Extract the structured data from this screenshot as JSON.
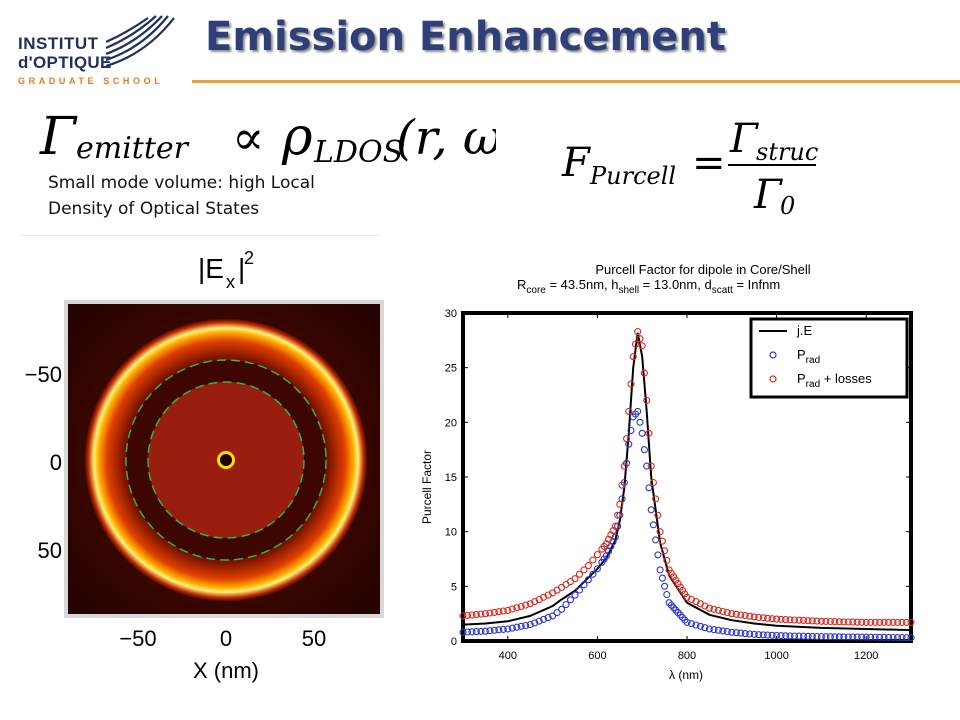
{
  "logo": {
    "line1": "INSTITUT",
    "line2": "d'OPTIQUE",
    "line3": "GRADUATE SCHOOL"
  },
  "slide": {
    "title": "Emission Enhancement",
    "caption_line1": "Small mode volume: high Local",
    "caption_line2": "Density of Optical States"
  },
  "formulas": {
    "gamma_emitter": "Γ",
    "gamma_emitter_sub": "emitter",
    "proportional": "∝",
    "rho": "ρ",
    "rho_sub": "LDOS",
    "rho_args": "(r, ω)",
    "purcell_lhs": "F",
    "purcell_lhs_sub": "Purcell",
    "equals": "=",
    "numerator": "Γ",
    "numerator_sub": "struc",
    "denominator": "Γ",
    "denominator_sub": "0"
  },
  "field_map": {
    "title_main": "|E",
    "title_sub": "x",
    "title_end": "|",
    "title_sup": "2",
    "y_ticks": [
      "−50",
      "0",
      "50"
    ],
    "x_ticks": [
      "−50",
      "0",
      "50"
    ],
    "xlabel": "X (nm)",
    "colors": {
      "background": "#2a0400",
      "core": "#9a1e10",
      "shell": "#3d0600",
      "glow": "#ffd900",
      "dash": "#2fbf3f"
    }
  },
  "chart_data": {
    "type": "scatter",
    "title_line1": "Purcell Factor for dipole in Core/Shell",
    "title_line2_parts": [
      "R",
      "core",
      " = 43.5nm,  h",
      "shell",
      " = 13.0nm,  d",
      "scatt",
      " = Infnm"
    ],
    "xlabel": "λ (nm)",
    "ylabel": "Purcell Factor",
    "xlim": [
      300,
      1300
    ],
    "ylim": [
      0,
      30
    ],
    "xticks": [
      400,
      600,
      800,
      1000,
      1200
    ],
    "yticks": [
      0,
      5,
      10,
      15,
      20,
      25,
      30
    ],
    "legend_position": "top-right",
    "series": [
      {
        "name": "j.E",
        "style": "line",
        "color": "#000000",
        "x": [
          300,
          350,
          400,
          450,
          500,
          520,
          550,
          580,
          600,
          620,
          640,
          650,
          660,
          670,
          680,
          690,
          700,
          710,
          720,
          740,
          760,
          800,
          850,
          900,
          950,
          1000,
          1100,
          1200,
          1300
        ],
        "y": [
          1.5,
          1.6,
          1.8,
          2.3,
          3.2,
          3.8,
          4.6,
          5.8,
          6.6,
          7.6,
          9.2,
          11,
          14,
          19,
          25,
          28.2,
          26,
          21,
          15,
          9,
          6,
          3.5,
          2.4,
          1.9,
          1.6,
          1.4,
          1.2,
          1.1,
          1.0
        ]
      },
      {
        "name": "P_rad",
        "style": "markers",
        "color": "#2d36c8",
        "x": [
          300,
          350,
          400,
          450,
          500,
          520,
          550,
          580,
          600,
          620,
          640,
          650,
          660,
          670,
          680,
          690,
          700,
          710,
          720,
          740,
          760,
          800,
          850,
          900,
          950,
          1000,
          1100,
          1200,
          1300
        ],
        "y": [
          0.8,
          0.9,
          1.1,
          1.5,
          2.3,
          2.9,
          4.2,
          5.6,
          6.6,
          7.8,
          9.5,
          11.5,
          14.5,
          18,
          20.5,
          21,
          19,
          16,
          12,
          6.5,
          3.5,
          1.7,
          1.1,
          0.8,
          0.6,
          0.5,
          0.4,
          0.35,
          0.3
        ]
      },
      {
        "name": "P_rad + losses",
        "style": "markers",
        "color": "#d42a20",
        "x": [
          300,
          350,
          400,
          450,
          500,
          520,
          550,
          580,
          600,
          620,
          640,
          650,
          660,
          670,
          680,
          690,
          700,
          710,
          720,
          740,
          760,
          800,
          850,
          900,
          950,
          1000,
          1100,
          1200,
          1300
        ],
        "y": [
          2.3,
          2.5,
          2.8,
          3.4,
          4.4,
          4.9,
          5.7,
          6.9,
          7.9,
          8.9,
          10.5,
          12.5,
          16,
          21,
          26,
          28.3,
          27,
          22,
          16,
          10,
          6.5,
          4,
          3,
          2.5,
          2.2,
          2.0,
          1.8,
          1.7,
          1.7
        ]
      }
    ],
    "legend": [
      {
        "label": "j.E",
        "sub": ""
      },
      {
        "label": "P",
        "sub": "rad",
        "suffix": ""
      },
      {
        "label": "P",
        "sub": "rad",
        "suffix": " + losses"
      }
    ]
  }
}
